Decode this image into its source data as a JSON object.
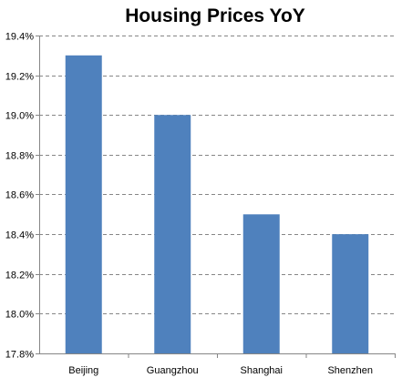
{
  "chart_data": {
    "type": "bar",
    "title": "Housing Prices YoY",
    "categories": [
      "Beijing",
      "Guangzhou",
      "Shanghai",
      "Shenzhen"
    ],
    "values": [
      19.3,
      19.0,
      18.5,
      18.4
    ],
    "unit": "%",
    "ylim": [
      17.8,
      19.4
    ],
    "yticks": [
      "17.8%",
      "18.0%",
      "18.2%",
      "18.4%",
      "18.6%",
      "18.8%",
      "19.0%",
      "19.2%",
      "19.4%"
    ],
    "ytick_values": [
      17.8,
      18.0,
      18.2,
      18.4,
      18.6,
      18.8,
      19.0,
      19.2,
      19.4
    ],
    "grid": "horizontal dashed",
    "legend": "none",
    "bar_color": "#4f81bd"
  }
}
